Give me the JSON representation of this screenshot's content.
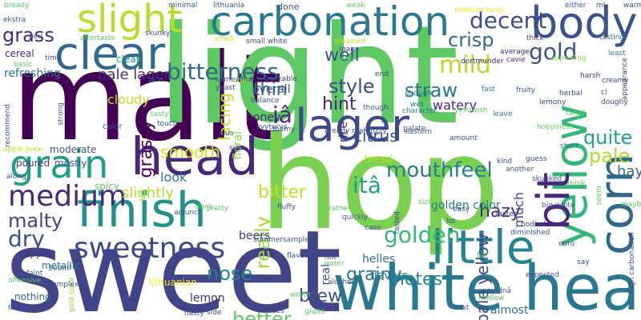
{
  "wordcloud": {
    "words": [
      {
        "text": "light",
        "color": "#5ec962"
      },
      {
        "text": "malt",
        "color": "#440154"
      },
      {
        "text": "hop",
        "color": "#7ad151"
      },
      {
        "text": "sweet",
        "color": "#414487"
      },
      {
        "text": "white head",
        "color": "#2a788e"
      },
      {
        "text": "carbonation",
        "color": "#2a788e"
      },
      {
        "text": "head",
        "color": "#482878"
      },
      {
        "text": "body",
        "color": "#3b528b"
      },
      {
        "text": "clear",
        "color": "#31688e"
      },
      {
        "text": "slight",
        "color": "#b5de2b"
      },
      {
        "text": "finish",
        "color": "#21918c"
      },
      {
        "text": "lager",
        "color": "#3e4989"
      },
      {
        "text": "grain",
        "color": "#1f9e89"
      },
      {
        "text": "medium",
        "color": "#482878"
      },
      {
        "text": "little",
        "color": "#26828e"
      },
      {
        "text": "yellow",
        "color": "#35b779"
      },
      {
        "text": "corn",
        "color": "#31688e"
      },
      {
        "text": "bit",
        "color": "#482878"
      },
      {
        "text": "sweetness",
        "color": "#3e4989"
      },
      {
        "text": "bitterness",
        "color": "#31688e"
      },
      {
        "text": "mouthfeel",
        "color": "#287d8e"
      },
      {
        "text": "golden",
        "color": "#35b779"
      },
      {
        "text": "grass",
        "color": "#472d7b"
      },
      {
        "text": "decent",
        "color": "#3e4989"
      },
      {
        "text": "mild",
        "color": "#b5de2b"
      },
      {
        "text": "gold",
        "color": "#3b528b"
      },
      {
        "text": "crisp",
        "color": "#31688e"
      },
      {
        "text": "pale",
        "color": "#addc30"
      },
      {
        "text": "well",
        "color": "#3b528b"
      },
      {
        "text": "style",
        "color": "#3e4989"
      },
      {
        "text": "thin",
        "color": "#31688e"
      },
      {
        "text": "hint",
        "color": "#482878"
      },
      {
        "text": "hazy",
        "color": "#472c7a"
      },
      {
        "text": "quite",
        "color": "#1fa188"
      },
      {
        "text": "citrus",
        "color": "#3b528b"
      },
      {
        "text": "straw",
        "color": "#2a788e"
      },
      {
        "text": "bitter",
        "color": "#c2df23"
      },
      {
        "text": "smooth",
        "color": "#d8e219"
      },
      {
        "text": "slightly",
        "color": "#b8de29"
      },
      {
        "text": "malty",
        "color": "#414487"
      },
      {
        "text": "dry",
        "color": "#3b528b"
      },
      {
        "text": "nose",
        "color": "#23888e"
      },
      {
        "text": "grainy",
        "color": "#2a788e"
      },
      {
        "text": "notes",
        "color": "#23898e"
      },
      {
        "text": "better",
        "color": "#5ec962"
      },
      {
        "text": "brew",
        "color": "#3b528b"
      },
      {
        "text": "really",
        "color": "#9dd93b"
      },
      {
        "text": "grassy",
        "color": "#440154"
      },
      {
        "text": "lacing",
        "color": "#c5e021"
      },
      {
        "text": "pale lager",
        "color": "#472d7b"
      },
      {
        "text": "pale yellow",
        "color": "#3e4989"
      },
      {
        "text": "itâ",
        "color": "#1f9e89"
      },
      {
        "text": "iâ",
        "color": "#482878"
      },
      {
        "text": "refreshing",
        "color": "#2c728e"
      },
      {
        "text": "cloudy",
        "color": "#bddf26"
      },
      {
        "text": "look",
        "color": "#2a788e"
      },
      {
        "text": "honey",
        "color": "#482878"
      },
      {
        "text": "floral",
        "color": "#8bd646"
      },
      {
        "text": "overall",
        "color": "#3b528b"
      },
      {
        "text": "rice",
        "color": "#482878"
      },
      {
        "text": "golden color",
        "color": "#2a788e"
      },
      {
        "text": "hay",
        "color": "#31688e"
      },
      {
        "text": "beers",
        "color": "#443a83"
      },
      {
        "text": "lithuanian",
        "color": "#fde725"
      },
      {
        "text": "watery",
        "color": "#482878"
      },
      {
        "text": "much",
        "color": "#3e4989"
      },
      {
        "text": "bread",
        "color": "#b8de29"
      },
      {
        "text": "flavors",
        "color": "#287d8e"
      },
      {
        "text": "lemon",
        "color": "#46337e"
      },
      {
        "text": "helles",
        "color": "#2c728e"
      },
      {
        "text": "almost",
        "color": "#2e6e8e"
      },
      {
        "text": "clean",
        "color": "#21918c"
      },
      {
        "text": "cereal",
        "color": "#472d7b"
      },
      {
        "text": "moderate",
        "color": "#3b528b"
      },
      {
        "text": "poured",
        "color": "#453781"
      },
      {
        "text": "mostly",
        "color": "#3b528b"
      },
      {
        "text": "spicy",
        "color": "#5ec962"
      },
      {
        "text": "nothing",
        "color": "#31688e"
      },
      {
        "text": "apple",
        "color": "#46327e"
      },
      {
        "text": "metallic",
        "color": "#2a788e"
      },
      {
        "text": "gold color",
        "color": "#8fd744"
      },
      {
        "text": "skunky",
        "color": "#3b528b"
      },
      {
        "text": "apple juice",
        "color": "#c8e020"
      },
      {
        "text": "fruity",
        "color": "#3b528b"
      },
      {
        "text": "herbal",
        "color": "#3e4989"
      },
      {
        "text": "harsh",
        "color": "#46337e"
      },
      {
        "text": "creamy",
        "color": "#3e4989"
      },
      {
        "text": "appearance",
        "color": "#3e4989"
      },
      {
        "text": "thick",
        "color": "#46337e"
      },
      {
        "text": "tasting",
        "color": "#31688e"
      },
      {
        "text": "average",
        "color": "#482878"
      },
      {
        "text": "dortmunder",
        "color": "#482878"
      },
      {
        "text": "cavie",
        "color": "#472d7b"
      },
      {
        "text": "appealing",
        "color": "#8bd646"
      },
      {
        "text": "least",
        "color": "#2a788e"
      },
      {
        "text": "medium body",
        "color": "#fde725"
      },
      {
        "text": "smell",
        "color": "#d2e21b"
      },
      {
        "text": "small white",
        "color": "#3e4989"
      },
      {
        "text": "pleasant",
        "color": "#bddf26"
      },
      {
        "text": "somewhat",
        "color": "#3b528b"
      },
      {
        "text": "yeast",
        "color": "#3e4989"
      },
      {
        "text": "fruit",
        "color": "#c2df23"
      },
      {
        "text": "drinkable",
        "color": "#3b528b"
      },
      {
        "text": "balance",
        "color": "#3b528b"
      },
      {
        "text": "palate",
        "color": "#3b528b"
      },
      {
        "text": "end",
        "color": "#3b528b"
      },
      {
        "text": "fast",
        "color": "#2a788e"
      },
      {
        "text": "enough",
        "color": "#2a788e"
      },
      {
        "text": "wet",
        "color": "#2a788e"
      },
      {
        "text": "character",
        "color": "#2a788e"
      },
      {
        "text": "yellowish",
        "color": "#5ec962"
      },
      {
        "text": "lemony",
        "color": "#3e4989"
      },
      {
        "text": "rated",
        "color": "#5ec962"
      },
      {
        "text": "doughy",
        "color": "#3e4989"
      },
      {
        "text": "leave",
        "color": "#2a788e"
      },
      {
        "text": "hoppiness",
        "color": "#5ec962"
      },
      {
        "text": "bready malt fizzy",
        "color": "#3b528b"
      },
      {
        "text": "eastern",
        "color": "#3b528b"
      },
      {
        "text": "amount",
        "color": "#3b528b"
      },
      {
        "text": "short",
        "color": "#2a788e"
      },
      {
        "text": "kind",
        "color": "#3b528b"
      },
      {
        "text": "guess",
        "color": "#3e4989"
      },
      {
        "text": "another",
        "color": "#3b528b"
      },
      {
        "text": "skunked",
        "color": "#3b528b"
      },
      {
        "text": "think",
        "color": "#5ec962"
      },
      {
        "text": "big white",
        "color": "#3b528b"
      },
      {
        "text": "easy",
        "color": "#3b528b"
      },
      {
        "text": "tastes",
        "color": "#3e4989"
      },
      {
        "text": "bodied",
        "color": "#3e4989"
      },
      {
        "text": "lot",
        "color": "#3b528b"
      },
      {
        "text": "seem",
        "color": "#5ec962"
      },
      {
        "text": "maybe",
        "color": "#5ec962"
      },
      {
        "text": "high carbonation",
        "color": "#3e4989"
      },
      {
        "text": "fluffy",
        "color": "#3b528b"
      },
      {
        "text": "rather",
        "color": "#5ec962"
      },
      {
        "text": "quickly",
        "color": "#3b528b"
      },
      {
        "text": "tasted",
        "color": "#3e4989"
      },
      {
        "text": "case",
        "color": "#3b528b"
      },
      {
        "text": "diminished",
        "color": "#3b528b"
      },
      {
        "text": "euro",
        "color": "#3b528b"
      },
      {
        "text": "full",
        "color": "#5ec962"
      },
      {
        "text": "say",
        "color": "#3e4989"
      },
      {
        "text": "expected",
        "color": "#3b528b"
      },
      {
        "text": "wouldnâ",
        "color": "#3b528b"
      },
      {
        "text": "mellow",
        "color": "#5ec962"
      },
      {
        "text": "best",
        "color": "#3b528b"
      },
      {
        "text": "hot",
        "color": "#3b528b"
      },
      {
        "text": "alcohol",
        "color": "#3b528b"
      },
      {
        "text": "glass",
        "color": "#5ec962"
      },
      {
        "text": "water",
        "color": "#5ec962"
      },
      {
        "text": "large",
        "color": "#3b528b"
      },
      {
        "text": "lithuanian",
        "color": "#3b528b"
      },
      {
        "text": "side",
        "color": "#3e4989"
      },
      {
        "text": "real",
        "color": "#3b528b"
      },
      {
        "text": "fades",
        "color": "#3b528b"
      },
      {
        "text": "nasty",
        "color": "#3b528b"
      },
      {
        "text": "flavour",
        "color": "#3b528b"
      },
      {
        "text": "worth",
        "color": "#5ec962"
      },
      {
        "text": "svyturys",
        "color": "#3b528b"
      },
      {
        "text": "summer",
        "color": "#3b528b"
      },
      {
        "text": "sized",
        "color": "#5ec962"
      },
      {
        "text": "sampled",
        "color": "#3b528b"
      },
      {
        "text": "pretty",
        "color": "#5ec962"
      },
      {
        "text": "adjunct",
        "color": "#3b528b"
      },
      {
        "text": "de",
        "color": "#5ec962"
      },
      {
        "text": "drink",
        "color": "#5ec962"
      },
      {
        "text": "sure",
        "color": "#3b528b"
      },
      {
        "text": "alus",
        "color": "#3b528b"
      },
      {
        "text": "foamy",
        "color": "#3b528b"
      },
      {
        "text": "500ml",
        "color": "#3b528b"
      },
      {
        "text": "faint",
        "color": "#3b528b"
      },
      {
        "text": "offensive",
        "color": "#5ec962"
      },
      {
        "text": "complex",
        "color": "#3b528b"
      },
      {
        "text": "peu",
        "color": "#3b528b"
      },
      {
        "text": "thatâ",
        "color": "#3e4989"
      },
      {
        "text": "along",
        "color": "#3b528b"
      },
      {
        "text": "color",
        "color": "#3b528b"
      },
      {
        "text": "tasty",
        "color": "#5ec962"
      },
      {
        "text": "touch",
        "color": "#3b528b"
      },
      {
        "text": "basic",
        "color": "#5ec962"
      },
      {
        "text": "time",
        "color": "#3b528b"
      },
      {
        "text": "lace",
        "color": "#3b528b"
      },
      {
        "text": "strong",
        "color": "#3b528b"
      },
      {
        "text": "recommend",
        "color": "#3b528b"
      },
      {
        "text": "ekstra",
        "color": "#3b528b"
      },
      {
        "text": "bready",
        "color": "#5ec962"
      },
      {
        "text": "aftertaste",
        "color": "#5ec962"
      },
      {
        "text": "minimal",
        "color": "#3b528b"
      },
      {
        "text": "lithuania",
        "color": "#3b528b"
      },
      {
        "text": "done",
        "color": "#3b528b"
      },
      {
        "text": "weak",
        "color": "#5ec962"
      },
      {
        "text": "either",
        "color": "#3b528b"
      },
      {
        "text": "ml",
        "color": "#3b528b"
      },
      {
        "text": "warm",
        "color": "#3b528b"
      },
      {
        "text": "many",
        "color": "#3b528b"
      },
      {
        "text": "half",
        "color": "#5ec962"
      },
      {
        "text": "though",
        "color": "#3b528b"
      },
      {
        "text": "cl",
        "color": "#3b528b"
      }
    ]
  }
}
